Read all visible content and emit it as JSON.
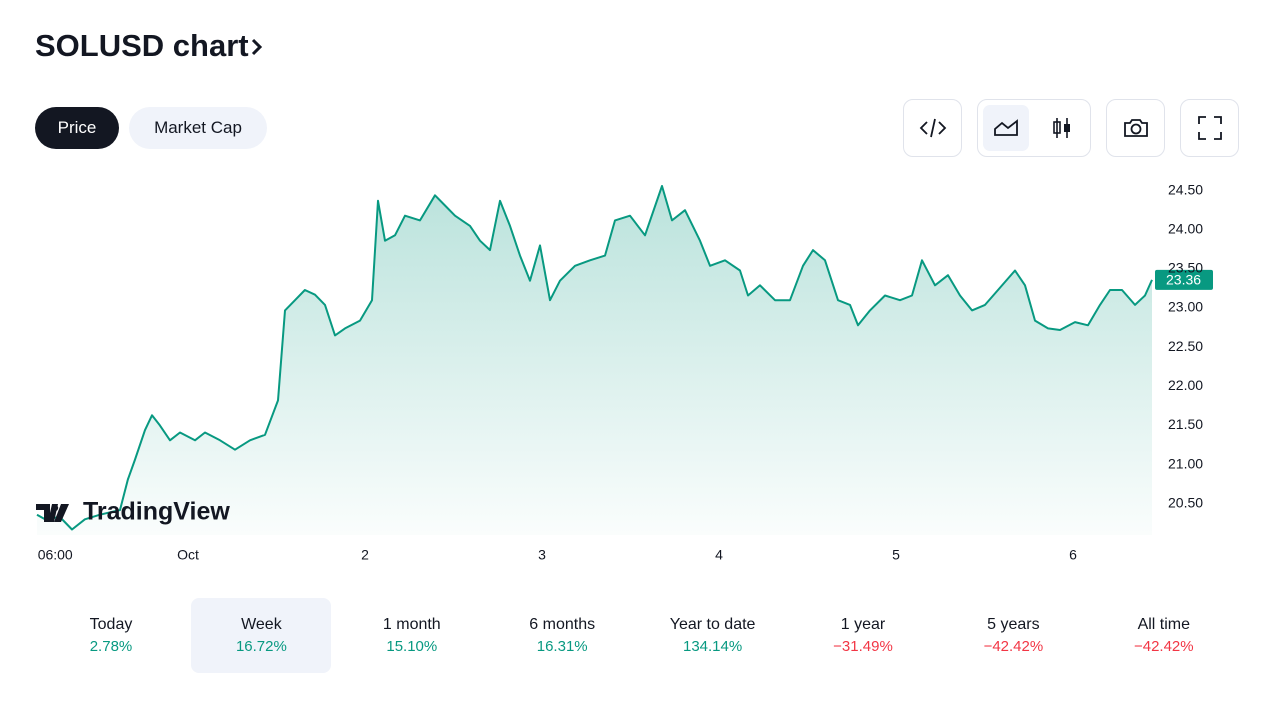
{
  "header": {
    "title": "SOLUSD chart"
  },
  "tabs": {
    "items": [
      "Price",
      "Market Cap"
    ],
    "selected": 0
  },
  "chart_data": {
    "type": "line",
    "color": "#089981",
    "grid": false,
    "watermark": "TradingView",
    "x": [
      3.53,
      4.61,
      6.64,
      8.27,
      10.03,
      12.07,
      14.78,
      15.86,
      16.81,
      18.17,
      19.12,
      20.2,
      21.56,
      22.92,
      24.95,
      26.31,
      28.34,
      30.37,
      32.41,
      34.44,
      36.2,
      37.15,
      38.51,
      39.86,
      41.22,
      42.58,
      43.93,
      45.29,
      47.32,
      48.95,
      49.76,
      50.71,
      52.07,
      53.42,
      55.46,
      57.49,
      58.85,
      60.2,
      62.24,
      63.59,
      64.95,
      66.31,
      67.66,
      69.02,
      70.37,
      71.73,
      73.08,
      74.44,
      76.47,
      78.51,
      80.54,
      81.9,
      83.93,
      85.97,
      88.27,
      89.63,
      91.39,
      93.42,
      94.78,
      96.81,
      98.85,
      99.93,
      101.56,
      103.59,
      105.63,
      107.39,
      108.75,
      110.37,
      112.14,
      113.76,
      114.85,
      116.47,
      118.51,
      120.54,
      122.17,
      123.53,
      125.29,
      127.05,
      128.68,
      130.31,
      132.07,
      133.83,
      136.14,
      137.49,
      138.85,
      140.61,
      142.24,
      144.27,
      146.03,
      147.66,
      149.02,
      150.64,
      152.41,
      153.76,
      154.71
    ],
    "values": [
      20.36,
      20.3,
      20.33,
      20.17,
      20.3,
      20.36,
      20.42,
      20.81,
      21.06,
      21.44,
      21.63,
      21.5,
      21.31,
      21.41,
      21.31,
      21.41,
      21.31,
      21.19,
      21.31,
      21.38,
      21.82,
      22.97,
      23.1,
      23.23,
      23.17,
      23.04,
      22.65,
      22.74,
      22.84,
      23.1,
      24.37,
      23.86,
      23.93,
      24.18,
      24.12,
      24.44,
      24.31,
      24.18,
      24.05,
      23.86,
      23.74,
      24.37,
      24.05,
      23.67,
      23.35,
      23.8,
      23.1,
      23.35,
      23.54,
      23.61,
      23.67,
      24.12,
      24.18,
      23.93,
      24.56,
      24.12,
      24.25,
      23.86,
      23.54,
      23.61,
      23.48,
      23.16,
      23.29,
      23.1,
      23.1,
      23.54,
      23.74,
      23.61,
      23.1,
      23.04,
      22.78,
      22.97,
      23.16,
      23.1,
      23.16,
      23.61,
      23.29,
      23.42,
      23.16,
      22.97,
      23.04,
      23.23,
      23.48,
      23.29,
      22.84,
      22.74,
      22.72,
      22.82,
      22.78,
      23.04,
      23.23,
      23.23,
      23.04,
      23.16,
      23.36
    ],
    "xlim": [
      3.53,
      154.71
    ],
    "xticks": [
      {
        "value": 6,
        "label": "06:00"
      },
      {
        "value": 24,
        "label": "Oct"
      },
      {
        "value": 48,
        "label": "2"
      },
      {
        "value": 72,
        "label": "3"
      },
      {
        "value": 96,
        "label": "4"
      },
      {
        "value": 120,
        "label": "5"
      },
      {
        "value": 144,
        "label": "6"
      }
    ],
    "ylim": [
      20.1,
      24.7
    ],
    "yticks": [
      {
        "value": 20.5,
        "label": "20.50"
      },
      {
        "value": 21,
        "label": "21.00"
      },
      {
        "value": 21.5,
        "label": "21.50"
      },
      {
        "value": 22,
        "label": "22.00"
      },
      {
        "value": 22.5,
        "label": "22.50"
      },
      {
        "value": 23,
        "label": "23.00"
      },
      {
        "value": 23.5,
        "label": "23.50"
      },
      {
        "value": 24,
        "label": "24.00"
      },
      {
        "value": 24.5,
        "label": "24.50"
      }
    ]
  },
  "periods": {
    "selected": 1,
    "items": [
      {
        "label": "Today",
        "change": "2.78%",
        "color": "#089981"
      },
      {
        "label": "Week",
        "change": "16.72%",
        "color": "#089981"
      },
      {
        "label": "1 month",
        "change": "15.10%",
        "color": "#089981"
      },
      {
        "label": "6 months",
        "change": "16.31%",
        "color": "#089981"
      },
      {
        "label": "Year to date",
        "change": "134.14%",
        "color": "#089981"
      },
      {
        "label": "1 year",
        "change": "−31.49%",
        "color": "#f23645"
      },
      {
        "label": "5 years",
        "change": "−42.42%",
        "color": "#f23645"
      },
      {
        "label": "All time",
        "change": "−42.42%",
        "color": "#f23645"
      }
    ]
  }
}
